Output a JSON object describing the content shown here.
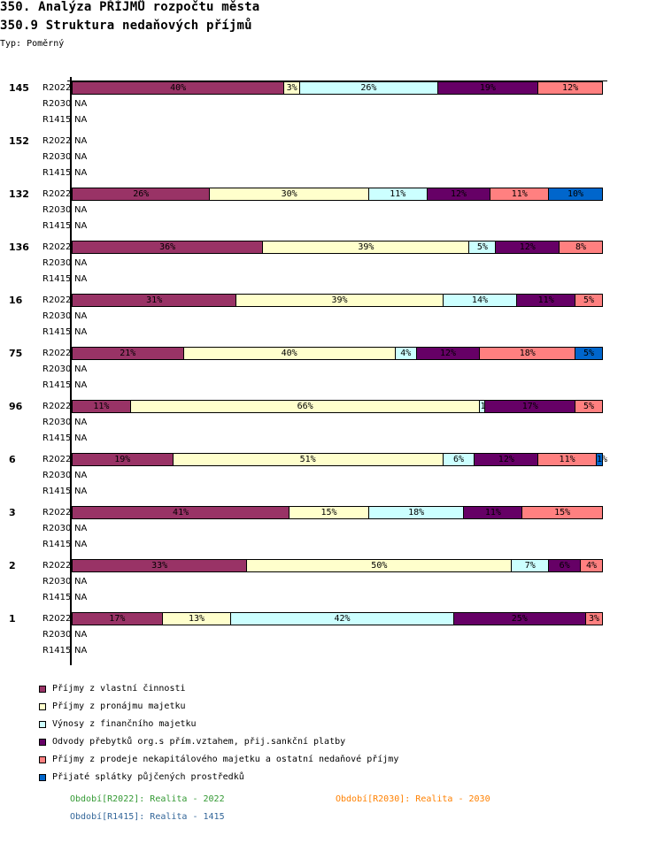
{
  "header": {
    "title": "350. Analýza PŘÍJMŮ rozpočtu města",
    "subtitle": "350.9 Struktura nedaňových příjmů",
    "type_label": "Typ: Poměrný"
  },
  "colors": {
    "vlastni": "#993366",
    "pronajem": "#FFFFCC",
    "financni": "#CCFFFF",
    "odvody": "#660066",
    "prodej": "#FF8080",
    "splatky": "#0066CC"
  },
  "chart_data": {
    "type": "bar",
    "orientation": "horizontal-stacked-100",
    "title": "350.9 Struktura nedaňových příjmů",
    "unit": "%",
    "series_names": [
      "Příjmy z vlastní činnosti",
      "Příjmy z pronájmu majetku",
      "Výnosy z finančního majetku",
      "Odvody přebytků org.s přím.vztahem, přij.sankční platby",
      "Příjmy z prodeje nekapitálového majetku a ostatní nedaňové příjmy",
      "Přijaté splátky půjčených prostředků"
    ],
    "series_keys": [
      "vlastni",
      "pronajem",
      "financni",
      "odvody",
      "prodej",
      "splatky"
    ],
    "periods": [
      "R2022",
      "R2030",
      "R1415"
    ],
    "na_label": "NA",
    "groups": [
      {
        "label": "145",
        "R2022": [
          40,
          3,
          26,
          19,
          12,
          0
        ],
        "R2030": null,
        "R1415": null
      },
      {
        "label": "152",
        "R2022": null,
        "R2030": null,
        "R1415": null
      },
      {
        "label": "132",
        "R2022": [
          26,
          30,
          11,
          12,
          11,
          10
        ],
        "R2030": null,
        "R1415": null
      },
      {
        "label": "136",
        "R2022": [
          36,
          39,
          5,
          12,
          8,
          0
        ],
        "R2030": null,
        "R1415": null
      },
      {
        "label": "16",
        "R2022": [
          31,
          39,
          14,
          11,
          5,
          0
        ],
        "R2030": null,
        "R1415": null
      },
      {
        "label": "75",
        "R2022": [
          21,
          40,
          4,
          12,
          18,
          5
        ],
        "R2030": null,
        "R1415": null
      },
      {
        "label": "96",
        "R2022": [
          11,
          66,
          1,
          17,
          5,
          0
        ],
        "R2030": null,
        "R1415": null
      },
      {
        "label": "6",
        "R2022": [
          19,
          51,
          6,
          12,
          11,
          1
        ],
        "R2030": null,
        "R1415": null
      },
      {
        "label": "3",
        "R2022": [
          41,
          15,
          18,
          11,
          15,
          0
        ],
        "R2030": null,
        "R1415": null
      },
      {
        "label": "2",
        "R2022": [
          33,
          50,
          7,
          6,
          4,
          0
        ],
        "R2030": null,
        "R1415": null
      },
      {
        "label": "1",
        "R2022": [
          17,
          13,
          42,
          25,
          3,
          0
        ],
        "R2030": null,
        "R1415": null
      }
    ],
    "xlim": [
      0,
      100
    ],
    "grid": false,
    "legend_position": "bottom-left"
  },
  "period_notes": [
    {
      "text": "Období[R2022]: Realita - 2022",
      "color": "#339933"
    },
    {
      "text": "Období[R2030]: Realita - 2030",
      "color": "#FF8000"
    },
    {
      "text": "Období[R1415]: Realita - 1415",
      "color": "#336699"
    }
  ]
}
